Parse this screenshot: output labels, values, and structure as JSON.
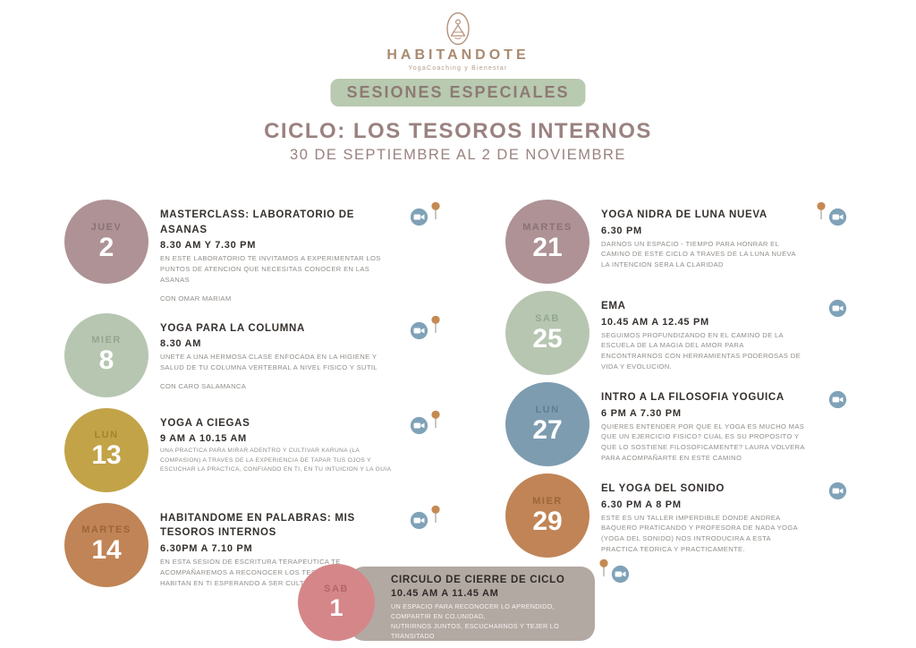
{
  "brand": {
    "name": "HABITANDOTE",
    "tagline": "YogaCoaching y Bienestar",
    "color": "#ab8a70"
  },
  "badge": {
    "label": "SESIONES ESPECIALES",
    "bg_color": "#b8cab0",
    "text_color": "#8d7a74"
  },
  "header": {
    "title": "CICLO: LOS TESOROS INTERNOS",
    "subtitle": "30 DE SEPTIEMBRE AL 2 DE NOVIEMBRE",
    "color": "#9a8280"
  },
  "icon_colors": {
    "cam_circle": "#7fa2b8",
    "cam_glyph": "#ffffff",
    "pin_head": "#c58a52",
    "pin_stem": "#b9b4ae"
  },
  "columns": {
    "left": [
      {
        "day": "JUEV",
        "date": "2",
        "circle_color": "#ae9295",
        "day_color": "#8a7174",
        "title": "MASTERCLASS: LABORATORIO DE ASANAS",
        "time": "8.30 AM Y 7.30 PM",
        "description": "EN ESTE LABORATORIO TE INVITAMOS A EXPERIMENTAR LOS PUNTOS DE ATENCION QUE NECESITAS CONOCER EN LAS ASANAS",
        "note": "CON OMAR MARIAM",
        "icons": [
          "cam",
          "pin"
        ]
      },
      {
        "day": "MIER",
        "date": "8",
        "circle_color": "#b7c6b1",
        "day_color": "#93a68e",
        "title": "YOGA PARA LA COLUMNA",
        "time": "8.30 AM",
        "description": "UNETE A UNA HERMOSA CLASE ENFOCADA EN LA HIGIENE Y SALUD DE TU COLUMNA VERTEBRAL A NIVEL FISICO Y SUTIL",
        "note": "CON CARO SALAMANCA",
        "icons": [
          "cam",
          "pin"
        ]
      },
      {
        "day": "LUN",
        "date": "13",
        "circle_color": "#c2a348",
        "day_color": "#a1852f",
        "title": "YOGA A CIEGAS",
        "time": "9 AM A 10.15 AM",
        "description": "UNA PRACTICA PARA MIRAR ADENTRO Y CULTIVAR KARUNA (LA COMPASION) A TRAVES DE LA EXPERIENCIA DE TAPAR TUS OJOS Y ESCUCHAR LA PRACTICA, CONFIANDO EN TI, EN TU INTUICION Y LA GUIA",
        "note": "",
        "icons": [
          "cam",
          "pin"
        ]
      },
      {
        "day": "MARTES",
        "date": "14",
        "circle_color": "#c08456",
        "day_color": "#9d6537",
        "title": "HABITANDOME EN PALABRAS: MIS TESOROS INTERNOS",
        "time": "6.30PM A 7.10 PM",
        "description": "EN ESTA SESION DE ESCRITURA TERAPEUTICA TE ACOMPAÑAREMOS A RECONOCER LOS TESOROS INTERNOS QUE HABITAN EN TI ESPERANDO A SER CULTIVADOS",
        "note": "",
        "icons": [
          "cam",
          "pin"
        ]
      }
    ],
    "right": [
      {
        "day": "MARTES",
        "date": "21",
        "circle_color": "#ae9295",
        "day_color": "#8a7174",
        "title": "YOGA NIDRA DE LUNA NUEVA",
        "time": "6.30 PM",
        "description": "DARNOS UN ESPACIO - TIEMPO PARA HONRAR EL CAMINO DE ESTE CICLO A TRAVES DE LA LUNA NUEVA LA INTENCION SERA LA CLARIDAD",
        "note": "",
        "icons": [
          "pin",
          "cam"
        ]
      },
      {
        "day": "SAB",
        "date": "25",
        "circle_color": "#b7c6b1",
        "day_color": "#93a68e",
        "title": "EMA",
        "time": "10.45 AM A 12.45 PM",
        "description": "SEGUIMOS PROFUNDIZANDO EN EL CAMINO DE LA ESCUELA DE LA MAGIA DEL AMOR PARA ENCONTRARNOS CON HERRAMIENTAS PODEROSAS DE VIDA Y EVOLUCION.",
        "note": "",
        "icons": [
          "cam"
        ]
      },
      {
        "day": "LUN",
        "date": "27",
        "circle_color": "#7d9cb0",
        "day_color": "#5d7f94",
        "title": "INTRO A LA FILOSOFIA YOGUICA",
        "time": "6 PM A 7.30 PM",
        "description": "QUIERES ENTENDER POR QUE EL YOGA ES MUCHO MAS QUE UN EJERCICIO FISICO? CUAL ES SU PROPOSITO Y QUE LO SOSTIENE FILOSOFICAMENTE? LAURA VOLVERA PARA ACOMPAÑARTE EN ESTE CAMINO",
        "note": "",
        "icons": [
          "cam"
        ]
      },
      {
        "day": "MIER",
        "date": "29",
        "circle_color": "#c08456",
        "day_color": "#9d6537",
        "title": "EL YOGA DEL SONIDO",
        "time": "6.30 PM A 8 PM",
        "description": "ESTE ES UN TALLER IMPERDIBLE DONDE ANDREA BAQUERO PRATICANDO Y PROFESORA DE NADA YOGA (YOGA DEL SONIDO) NOS INTRODUCIRA A ESTA PRACTICA TEORICA Y PRACTICAMENTE.",
        "note": "",
        "icons": [
          "cam"
        ]
      }
    ]
  },
  "bottom_event": {
    "day": "SAB",
    "date": "1",
    "circle_color": "#d58689",
    "day_color": "#b2666a",
    "panel_color": "#b3a9a3",
    "title": "CIRCULO DE CIERRE DE CICLO",
    "time": "10.45 AM A 11.45 AM",
    "description": "UN ESPACIO PARA RECONOCER LO APRENDIDO, COMPARTIR EN CO,UNIDAD,\nNUTRIRNOS JUNTOS, ESCUCHARNOS Y TEJER LO TRANSITADO",
    "icons": [
      "pin",
      "cam"
    ]
  }
}
